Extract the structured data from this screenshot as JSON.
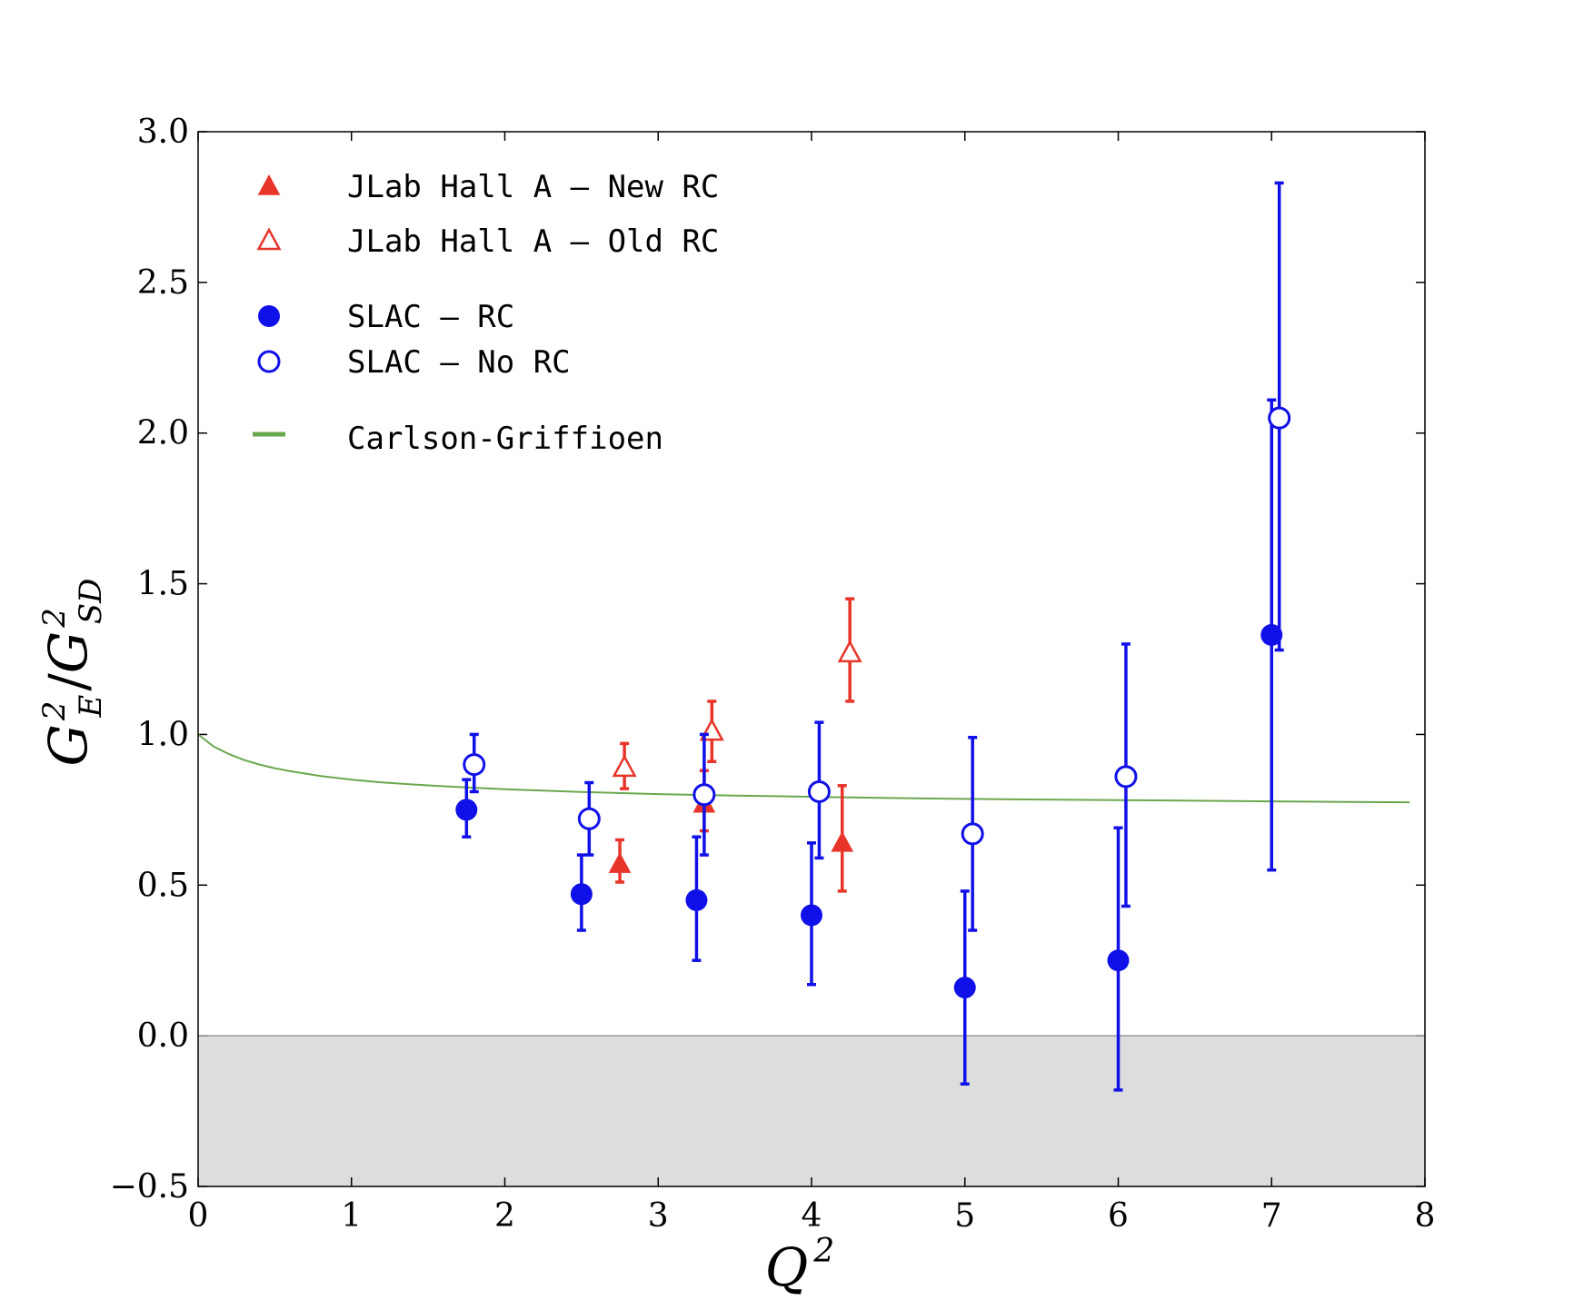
{
  "chart_data": {
    "type": "scatter",
    "xlabel": "Q",
    "xlabel_sup": "2",
    "ylabel_main": "G",
    "ylabel_num_sup": "2",
    "ylabel_num_sub": "E",
    "ylabel_slash": "/",
    "ylabel_den_sup": "2",
    "ylabel_den_sub": "SD",
    "xlim": [
      0,
      8
    ],
    "ylim": [
      -0.5,
      3.0
    ],
    "xticks": [
      0,
      1,
      2,
      3,
      4,
      5,
      6,
      7,
      8
    ],
    "xtick_labels": [
      "0",
      "1",
      "2",
      "3",
      "4",
      "5",
      "6",
      "7",
      "8"
    ],
    "yticks": [
      -0.5,
      0.0,
      0.5,
      1.0,
      1.5,
      2.0,
      2.5,
      3.0
    ],
    "ytick_labels": [
      "−0.5",
      "0.0",
      "0.5",
      "1.0",
      "1.5",
      "2.0",
      "2.5",
      "3.0"
    ],
    "shaded_region": {
      "y_from": -0.5,
      "y_to": 0.0,
      "color": "#dddddd"
    },
    "legend_position": "top-left",
    "series": [
      {
        "name": "JLab Hall A — New RC",
        "marker": "triangle-filled",
        "color": "#e8352a",
        "points": [
          {
            "x": 2.75,
            "y": 0.57,
            "err_lo": 0.51,
            "err_hi": 0.65
          },
          {
            "x": 3.3,
            "y": 0.77,
            "err_lo": 0.68,
            "err_hi": 0.88
          },
          {
            "x": 4.2,
            "y": 0.64,
            "err_lo": 0.48,
            "err_hi": 0.83
          }
        ]
      },
      {
        "name": "JLab Hall A — Old RC",
        "marker": "triangle-open",
        "color": "#e8352a",
        "points": [
          {
            "x": 2.78,
            "y": 0.89,
            "err_lo": 0.82,
            "err_hi": 0.97
          },
          {
            "x": 3.35,
            "y": 1.01,
            "err_lo": 0.91,
            "err_hi": 1.11
          },
          {
            "x": 4.25,
            "y": 1.27,
            "err_lo": 1.11,
            "err_hi": 1.45
          }
        ]
      },
      {
        "name": "SLAC — RC",
        "marker": "circle-filled",
        "color": "#1010e8",
        "points": [
          {
            "x": 1.75,
            "y": 0.75,
            "err_lo": 0.66,
            "err_hi": 0.85
          },
          {
            "x": 2.5,
            "y": 0.47,
            "err_lo": 0.35,
            "err_hi": 0.6
          },
          {
            "x": 3.25,
            "y": 0.45,
            "err_lo": 0.25,
            "err_hi": 0.66
          },
          {
            "x": 4.0,
            "y": 0.4,
            "err_lo": 0.17,
            "err_hi": 0.64
          },
          {
            "x": 5.0,
            "y": 0.16,
            "err_lo": -0.16,
            "err_hi": 0.48
          },
          {
            "x": 6.0,
            "y": 0.25,
            "err_lo": -0.18,
            "err_hi": 0.69
          },
          {
            "x": 7.0,
            "y": 1.33,
            "err_lo": 0.55,
            "err_hi": 2.11
          }
        ]
      },
      {
        "name": "SLAC — No RC",
        "marker": "circle-open",
        "color": "#1010e8",
        "points": [
          {
            "x": 1.8,
            "y": 0.9,
            "err_lo": 0.81,
            "err_hi": 1.0
          },
          {
            "x": 2.55,
            "y": 0.72,
            "err_lo": 0.6,
            "err_hi": 0.84
          },
          {
            "x": 3.3,
            "y": 0.8,
            "err_lo": 0.6,
            "err_hi": 1.0
          },
          {
            "x": 4.05,
            "y": 0.81,
            "err_lo": 0.59,
            "err_hi": 1.04
          },
          {
            "x": 5.05,
            "y": 0.67,
            "err_lo": 0.35,
            "err_hi": 0.99
          },
          {
            "x": 6.05,
            "y": 0.86,
            "err_lo": 0.43,
            "err_hi": 1.3
          },
          {
            "x": 7.05,
            "y": 2.05,
            "err_lo": 1.28,
            "err_hi": 2.83
          }
        ]
      },
      {
        "name": "Carlson-Griffioen",
        "marker": "line",
        "color": "#6aa84f",
        "x": [
          0,
          0.1,
          0.2,
          0.3,
          0.4,
          0.5,
          0.6,
          0.8,
          1.0,
          1.2,
          1.4,
          1.6,
          1.8,
          2.0,
          2.5,
          3.0,
          3.5,
          4.0,
          4.5,
          5.0,
          5.5,
          6.0,
          6.5,
          7.0,
          7.5,
          7.9
        ],
        "y": [
          1.0,
          0.96,
          0.935,
          0.915,
          0.9,
          0.888,
          0.878,
          0.862,
          0.85,
          0.841,
          0.834,
          0.828,
          0.823,
          0.818,
          0.809,
          0.802,
          0.797,
          0.793,
          0.789,
          0.786,
          0.784,
          0.782,
          0.78,
          0.778,
          0.776,
          0.775
        ]
      }
    ]
  }
}
